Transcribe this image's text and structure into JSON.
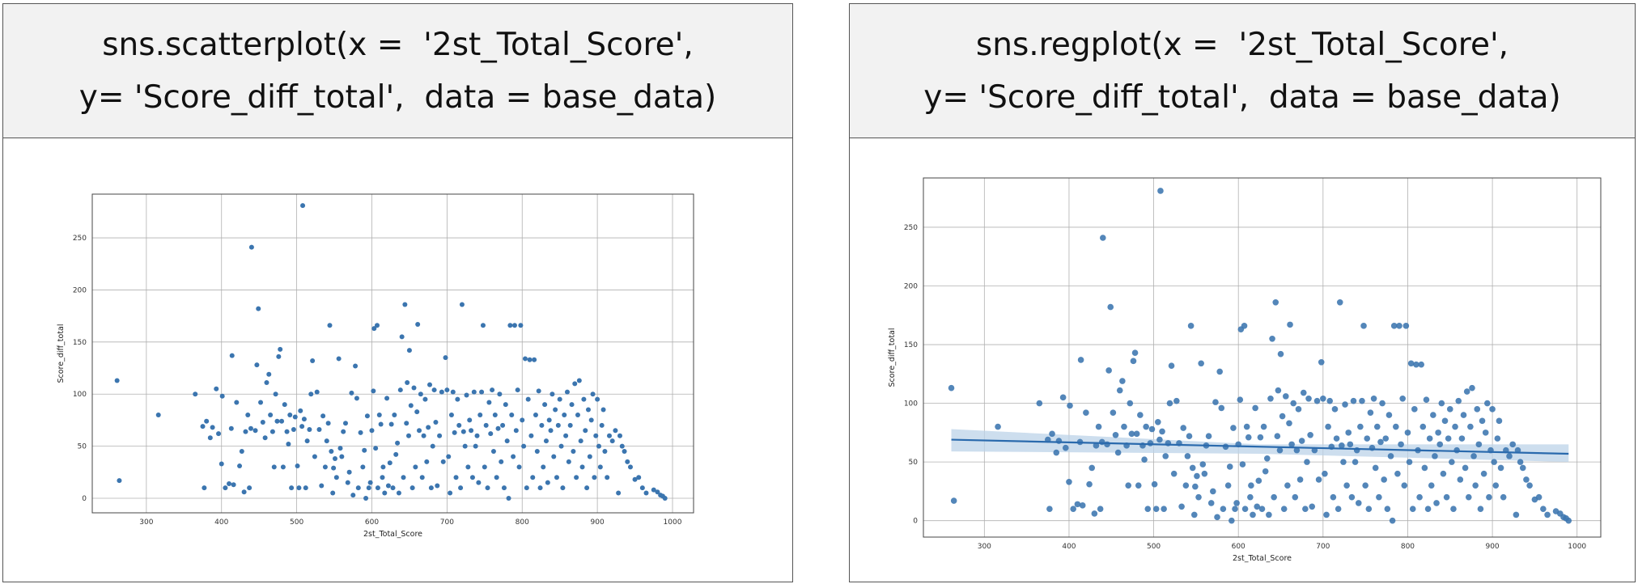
{
  "panels": {
    "left": {
      "caption_line1": "sns.scatterplot(x =  '2st_Total_Score',",
      "caption_line2": "y= 'Score_diff_total',  data = base_data)"
    },
    "right": {
      "caption_line1": "sns.regplot(x =  '2st_Total_Score',",
      "caption_line2": "y= 'Score_diff_total',  data = base_data)"
    }
  },
  "colors": {
    "point": "#3b75af",
    "line": "#2a6aad",
    "band": "#bcd3e8",
    "grid": "#b0b0b0",
    "frame": "#444444"
  },
  "chart_data": [
    {
      "type": "scatter",
      "xlabel": "2st_Total_Score",
      "ylabel": "Score_diff_total",
      "xlim": [
        228,
        1028
      ],
      "ylim": [
        -14,
        292
      ],
      "xticks": [
        300,
        400,
        500,
        600,
        700,
        800,
        900,
        1000
      ],
      "yticks": [
        0,
        50,
        100,
        150,
        200,
        250
      ],
      "grid": true,
      "points": [
        [
          261,
          113
        ],
        [
          264,
          17
        ],
        [
          316,
          80
        ],
        [
          365,
          100
        ],
        [
          375,
          69
        ],
        [
          377,
          10
        ],
        [
          380,
          74
        ],
        [
          385,
          58
        ],
        [
          388,
          68
        ],
        [
          393,
          105
        ],
        [
          396,
          62
        ],
        [
          400,
          33
        ],
        [
          401,
          98
        ],
        [
          405,
          10
        ],
        [
          410,
          14
        ],
        [
          413,
          67
        ],
        [
          414,
          137
        ],
        [
          416,
          13
        ],
        [
          420,
          92
        ],
        [
          424,
          31
        ],
        [
          427,
          45
        ],
        [
          430,
          6
        ],
        [
          432,
          64
        ],
        [
          435,
          80
        ],
        [
          437,
          10
        ],
        [
          439,
          67
        ],
        [
          440,
          241
        ],
        [
          445,
          65
        ],
        [
          447,
          128
        ],
        [
          449,
          182
        ],
        [
          452,
          92
        ],
        [
          455,
          73
        ],
        [
          458,
          58
        ],
        [
          460,
          111
        ],
        [
          463,
          119
        ],
        [
          465,
          80
        ],
        [
          468,
          64
        ],
        [
          470,
          30
        ],
        [
          472,
          100
        ],
        [
          474,
          74
        ],
        [
          476,
          136
        ],
        [
          478,
          143
        ],
        [
          480,
          74
        ],
        [
          482,
          30
        ],
        [
          484,
          90
        ],
        [
          487,
          64
        ],
        [
          489,
          52
        ],
        [
          491,
          80
        ],
        [
          493,
          10
        ],
        [
          496,
          66
        ],
        [
          498,
          78
        ],
        [
          501,
          31
        ],
        [
          503,
          10
        ],
        [
          505,
          84
        ],
        [
          507,
          69
        ],
        [
          508,
          281
        ],
        [
          510,
          76
        ],
        [
          512,
          10
        ],
        [
          514,
          55
        ],
        [
          517,
          66
        ],
        [
          519,
          100
        ],
        [
          521,
          132
        ],
        [
          524,
          40
        ],
        [
          527,
          102
        ],
        [
          530,
          66
        ],
        [
          533,
          12
        ],
        [
          535,
          79
        ],
        [
          538,
          30
        ],
        [
          540,
          55
        ],
        [
          542,
          72
        ],
        [
          544,
          166
        ],
        [
          546,
          45
        ],
        [
          548,
          5
        ],
        [
          549,
          29
        ],
        [
          551,
          38
        ],
        [
          553,
          20
        ],
        [
          556,
          134
        ],
        [
          558,
          48
        ],
        [
          560,
          40
        ],
        [
          562,
          64
        ],
        [
          565,
          72
        ],
        [
          568,
          15
        ],
        [
          570,
          25
        ],
        [
          573,
          101
        ],
        [
          575,
          3
        ],
        [
          578,
          127
        ],
        [
          580,
          96
        ],
        [
          582,
          10
        ],
        [
          585,
          63
        ],
        [
          588,
          30
        ],
        [
          590,
          46
        ],
        [
          592,
          0
        ],
        [
          594,
          79
        ],
        [
          596,
          10
        ],
        [
          598,
          15
        ],
        [
          600,
          65
        ],
        [
          602,
          103
        ],
        [
          603,
          163
        ],
        [
          605,
          48
        ],
        [
          607,
          166
        ],
        [
          608,
          10
        ],
        [
          610,
          80
        ],
        [
          612,
          71
        ],
        [
          614,
          20
        ],
        [
          615,
          30
        ],
        [
          617,
          5
        ],
        [
          620,
          96
        ],
        [
          622,
          12
        ],
        [
          624,
          34
        ],
        [
          626,
          71
        ],
        [
          628,
          10
        ],
        [
          630,
          80
        ],
        [
          632,
          42
        ],
        [
          634,
          53
        ],
        [
          636,
          5
        ],
        [
          638,
          104
        ],
        [
          640,
          155
        ],
        [
          642,
          20
        ],
        [
          644,
          186
        ],
        [
          646,
          72
        ],
        [
          647,
          111
        ],
        [
          649,
          60
        ],
        [
          650,
          142
        ],
        [
          652,
          89
        ],
        [
          654,
          10
        ],
        [
          656,
          106
        ],
        [
          658,
          30
        ],
        [
          660,
          83
        ],
        [
          661,
          167
        ],
        [
          663,
          65
        ],
        [
          665,
          100
        ],
        [
          667,
          20
        ],
        [
          669,
          60
        ],
        [
          671,
          95
        ],
        [
          673,
          35
        ],
        [
          675,
          68
        ],
        [
          677,
          109
        ],
        [
          679,
          10
        ],
        [
          681,
          50
        ],
        [
          683,
          104
        ],
        [
          685,
          73
        ],
        [
          687,
          12
        ],
        [
          690,
          60
        ],
        [
          693,
          102
        ],
        [
          695,
          35
        ],
        [
          698,
          135
        ],
        [
          700,
          104
        ],
        [
          702,
          40
        ],
        [
          704,
          5
        ],
        [
          706,
          80
        ],
        [
          708,
          102
        ],
        [
          710,
          63
        ],
        [
          712,
          20
        ],
        [
          714,
          95
        ],
        [
          716,
          70
        ],
        [
          718,
          10
        ],
        [
          720,
          186
        ],
        [
          722,
          64
        ],
        [
          724,
          50
        ],
        [
          726,
          99
        ],
        [
          728,
          30
        ],
        [
          730,
          75
        ],
        [
          732,
          65
        ],
        [
          734,
          20
        ],
        [
          736,
          102
        ],
        [
          738,
          50
        ],
        [
          740,
          60
        ],
        [
          742,
          15
        ],
        [
          744,
          80
        ],
        [
          746,
          102
        ],
        [
          748,
          166
        ],
        [
          750,
          30
        ],
        [
          752,
          70
        ],
        [
          754,
          10
        ],
        [
          756,
          92
        ],
        [
          758,
          62
        ],
        [
          760,
          104
        ],
        [
          762,
          45
        ],
        [
          764,
          80
        ],
        [
          766,
          20
        ],
        [
          768,
          67
        ],
        [
          770,
          100
        ],
        [
          772,
          35
        ],
        [
          774,
          70
        ],
        [
          776,
          10
        ],
        [
          778,
          90
        ],
        [
          780,
          55
        ],
        [
          782,
          0
        ],
        [
          784,
          166
        ],
        [
          786,
          80
        ],
        [
          788,
          40
        ],
        [
          790,
          166
        ],
        [
          792,
          65
        ],
        [
          794,
          104
        ],
        [
          796,
          30
        ],
        [
          798,
          166
        ],
        [
          800,
          75
        ],
        [
          802,
          50
        ],
        [
          804,
          134
        ],
        [
          806,
          10
        ],
        [
          808,
          95
        ],
        [
          810,
          133
        ],
        [
          812,
          60
        ],
        [
          814,
          20
        ],
        [
          816,
          133
        ],
        [
          818,
          80
        ],
        [
          820,
          45
        ],
        [
          822,
          103
        ],
        [
          824,
          10
        ],
        [
          826,
          70
        ],
        [
          828,
          30
        ],
        [
          830,
          90
        ],
        [
          832,
          55
        ],
        [
          834,
          15
        ],
        [
          836,
          75
        ],
        [
          838,
          65
        ],
        [
          840,
          100
        ],
        [
          842,
          40
        ],
        [
          844,
          85
        ],
        [
          846,
          20
        ],
        [
          848,
          70
        ],
        [
          850,
          95
        ],
        [
          852,
          50
        ],
        [
          854,
          10
        ],
        [
          856,
          80
        ],
        [
          858,
          60
        ],
        [
          860,
          102
        ],
        [
          862,
          35
        ],
        [
          864,
          70
        ],
        [
          866,
          90
        ],
        [
          868,
          45
        ],
        [
          870,
          110
        ],
        [
          872,
          20
        ],
        [
          874,
          80
        ],
        [
          876,
          113
        ],
        [
          878,
          55
        ],
        [
          880,
          30
        ],
        [
          882,
          95
        ],
        [
          884,
          65
        ],
        [
          886,
          10
        ],
        [
          888,
          85
        ],
        [
          890,
          40
        ],
        [
          892,
          75
        ],
        [
          894,
          100
        ],
        [
          896,
          20
        ],
        [
          898,
          60
        ],
        [
          900,
          95
        ],
        [
          902,
          50
        ],
        [
          904,
          30
        ],
        [
          906,
          70
        ],
        [
          908,
          85
        ],
        [
          910,
          45
        ],
        [
          913,
          20
        ],
        [
          916,
          60
        ],
        [
          920,
          55
        ],
        [
          924,
          65
        ],
        [
          928,
          5
        ],
        [
          930,
          60
        ],
        [
          933,
          50
        ],
        [
          936,
          45
        ],
        [
          940,
          35
        ],
        [
          944,
          30
        ],
        [
          950,
          18
        ],
        [
          955,
          20
        ],
        [
          960,
          10
        ],
        [
          965,
          5
        ],
        [
          975,
          8
        ],
        [
          980,
          6
        ],
        [
          984,
          3
        ],
        [
          987,
          2
        ],
        [
          990,
          0
        ]
      ]
    },
    {
      "type": "scatter",
      "xlabel": "2st_Total_Score",
      "ylabel": "Score_diff_total",
      "xlim": [
        228,
        1028
      ],
      "ylim": [
        -14,
        292
      ],
      "xticks": [
        300,
        400,
        500,
        600,
        700,
        800,
        900,
        1000
      ],
      "yticks": [
        0,
        50,
        100,
        150,
        200,
        250
      ],
      "grid": true,
      "regression": {
        "x": [
          261,
          990
        ],
        "y": [
          69,
          57
        ]
      },
      "confidence_band": {
        "x": [
          261,
          625,
          990
        ],
        "upper": [
          78,
          65,
          65
        ],
        "lower": [
          59,
          57,
          50
        ]
      },
      "points": "same as left panel"
    }
  ]
}
